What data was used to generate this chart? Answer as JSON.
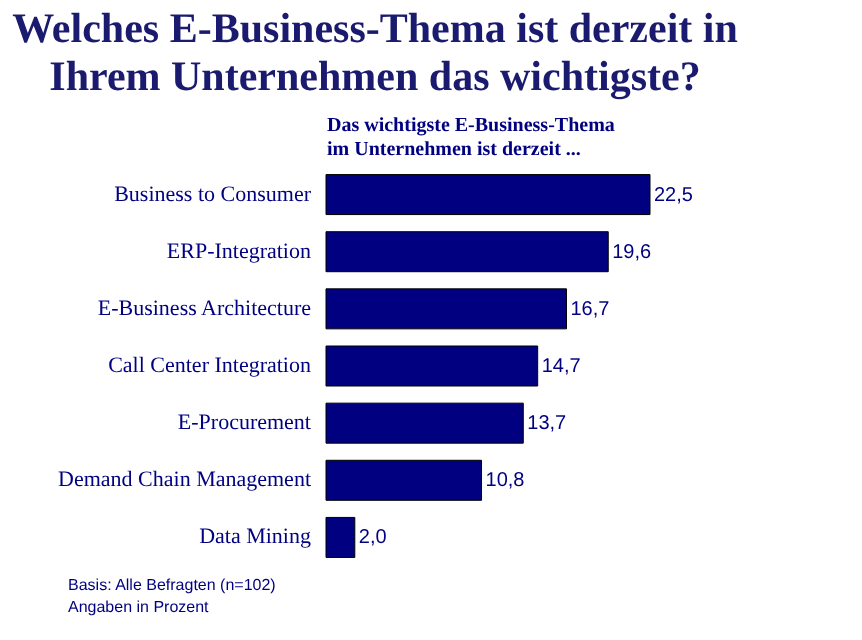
{
  "chart_data": {
    "type": "bar",
    "orientation": "horizontal",
    "title": "Welches E-Business-Thema ist derzeit in\nIhrem Unternehmen das wichtigste?",
    "subtitle": "Das wichtigste E-Business-Thema\nim Unternehmen ist derzeit ...",
    "categories": [
      "Business to Consumer",
      "ERP-Integration",
      "E-Business Architecture",
      "Call Center Integration",
      "E-Procurement",
      "Demand Chain Management",
      "Data Mining"
    ],
    "values": [
      22.5,
      19.6,
      16.7,
      14.7,
      13.7,
      10.8,
      2.0
    ],
    "value_labels": [
      "22,5",
      "19,6",
      "16,7",
      "14,7",
      "13,7",
      "10,8",
      "2,0"
    ],
    "color": "#000080",
    "annotations": [
      "Basis: Alle Befragten (n=102)",
      "Angaben in Prozent"
    ]
  }
}
